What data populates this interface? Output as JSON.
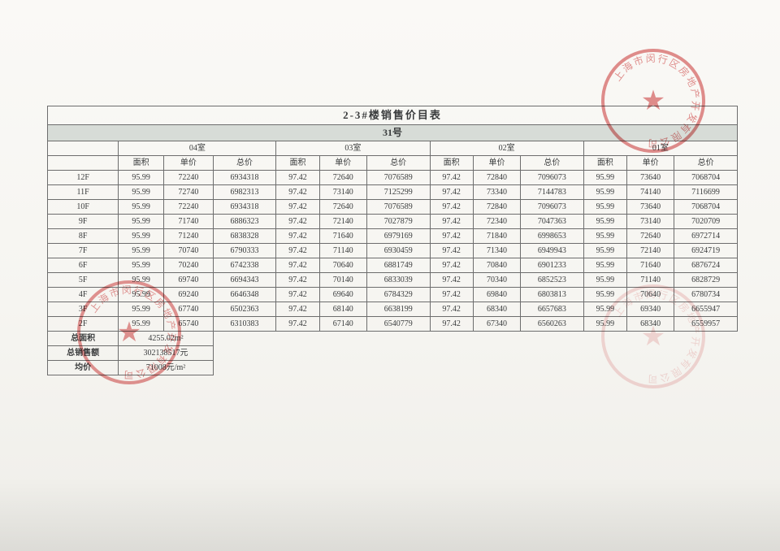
{
  "title": "2-3#楼销售价目表",
  "building": "31号",
  "rooms": [
    "04室",
    "03室",
    "02室",
    "01室"
  ],
  "subheaders": [
    "面积",
    "单价",
    "总价"
  ],
  "floors": [
    {
      "f": "12F",
      "c": [
        [
          "95.99",
          "72240",
          "6934318"
        ],
        [
          "97.42",
          "72640",
          "7076589"
        ],
        [
          "97.42",
          "72840",
          "7096073"
        ],
        [
          "95.99",
          "73640",
          "7068704"
        ]
      ]
    },
    {
      "f": "11F",
      "c": [
        [
          "95.99",
          "72740",
          "6982313"
        ],
        [
          "97.42",
          "73140",
          "7125299"
        ],
        [
          "97.42",
          "73340",
          "7144783"
        ],
        [
          "95.99",
          "74140",
          "7116699"
        ]
      ]
    },
    {
      "f": "10F",
      "c": [
        [
          "95.99",
          "72240",
          "6934318"
        ],
        [
          "97.42",
          "72640",
          "7076589"
        ],
        [
          "97.42",
          "72840",
          "7096073"
        ],
        [
          "95.99",
          "73640",
          "7068704"
        ]
      ]
    },
    {
      "f": "9F",
      "c": [
        [
          "95.99",
          "71740",
          "6886323"
        ],
        [
          "97.42",
          "72140",
          "7027879"
        ],
        [
          "97.42",
          "72340",
          "7047363"
        ],
        [
          "95.99",
          "73140",
          "7020709"
        ]
      ]
    },
    {
      "f": "8F",
      "c": [
        [
          "95.99",
          "71240",
          "6838328"
        ],
        [
          "97.42",
          "71640",
          "6979169"
        ],
        [
          "97.42",
          "71840",
          "6998653"
        ],
        [
          "95.99",
          "72640",
          "6972714"
        ]
      ]
    },
    {
      "f": "7F",
      "c": [
        [
          "95.99",
          "70740",
          "6790333"
        ],
        [
          "97.42",
          "71140",
          "6930459"
        ],
        [
          "97.42",
          "71340",
          "6949943"
        ],
        [
          "95.99",
          "72140",
          "6924719"
        ]
      ]
    },
    {
      "f": "6F",
      "c": [
        [
          "95.99",
          "70240",
          "6742338"
        ],
        [
          "97.42",
          "70640",
          "6881749"
        ],
        [
          "97.42",
          "70840",
          "6901233"
        ],
        [
          "95.99",
          "71640",
          "6876724"
        ]
      ]
    },
    {
      "f": "5F",
      "c": [
        [
          "95.99",
          "69740",
          "6694343"
        ],
        [
          "97.42",
          "70140",
          "6833039"
        ],
        [
          "97.42",
          "70340",
          "6852523"
        ],
        [
          "95.99",
          "71140",
          "6828729"
        ]
      ]
    },
    {
      "f": "4F",
      "c": [
        [
          "95.99",
          "69240",
          "6646348"
        ],
        [
          "97.42",
          "69640",
          "6784329"
        ],
        [
          "97.42",
          "69840",
          "6803813"
        ],
        [
          "95.99",
          "70640",
          "6780734"
        ]
      ]
    },
    {
      "f": "3F",
      "c": [
        [
          "95.99",
          "67740",
          "6502363"
        ],
        [
          "97.42",
          "68140",
          "6638199"
        ],
        [
          "97.42",
          "68340",
          "6657683"
        ],
        [
          "95.99",
          "69340",
          "6655947"
        ]
      ]
    },
    {
      "f": "2F",
      "c": [
        [
          "95.99",
          "65740",
          "6310383"
        ],
        [
          "97.42",
          "67140",
          "6540779"
        ],
        [
          "97.42",
          "67340",
          "6560263"
        ],
        [
          "95.99",
          "68340",
          "6559957"
        ]
      ]
    }
  ],
  "summary": {
    "area_label": "总面积",
    "area_value": "4255.02m²",
    "total_label": "总销售额",
    "total_value": "302138517元",
    "avg_label": "均价",
    "avg_value": "71008元/m²"
  },
  "stamp": {
    "top_text": "上海市闵行区房地产开发有限公司",
    "bottom_text": "上海"
  },
  "table_style": {
    "border_color": "#6d6d6d",
    "header_band_color": "#d7dcd7",
    "text_color": "#3a3c3d",
    "stamp_color": "rgba(200,30,30,0.55)"
  }
}
